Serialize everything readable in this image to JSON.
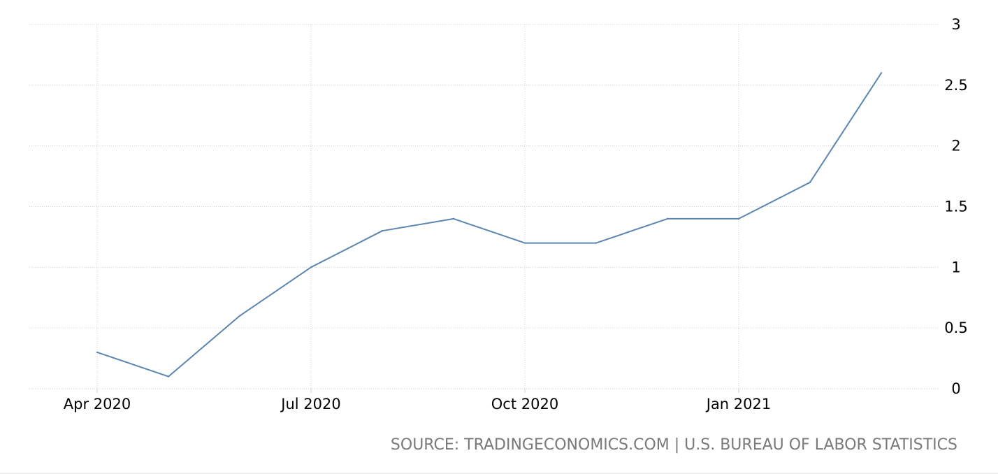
{
  "chart_data": {
    "type": "line",
    "x_tick_labels": [
      "Apr 2020",
      "Jul 2020",
      "Oct 2020",
      "Jan 2021"
    ],
    "x": [
      "2020-04",
      "2020-05",
      "2020-06",
      "2020-07",
      "2020-08",
      "2020-09",
      "2020-10",
      "2020-11",
      "2020-12",
      "2021-01",
      "2021-02",
      "2021-03"
    ],
    "series": [
      {
        "values": [
          0.3,
          0.1,
          0.6,
          1.0,
          1.3,
          1.4,
          1.2,
          1.2,
          1.4,
          1.4,
          1.7,
          2.6
        ],
        "color": "#5b86b0"
      }
    ],
    "ylim": [
      0,
      3
    ],
    "y_ticks": [
      0,
      0.5,
      1,
      1.5,
      2,
      2.5,
      3
    ],
    "y_tick_labels": [
      "0",
      "0.5",
      "1",
      "1.5",
      "2",
      "2.5",
      "3"
    ],
    "y_axis_side": "right",
    "grid": true,
    "grid_style": "dotted",
    "title": "",
    "xlabel": "",
    "ylabel": ""
  },
  "source": "SOURCE: TRADINGECONOMICS.COM | U.S. BUREAU OF LABOR STATISTICS"
}
